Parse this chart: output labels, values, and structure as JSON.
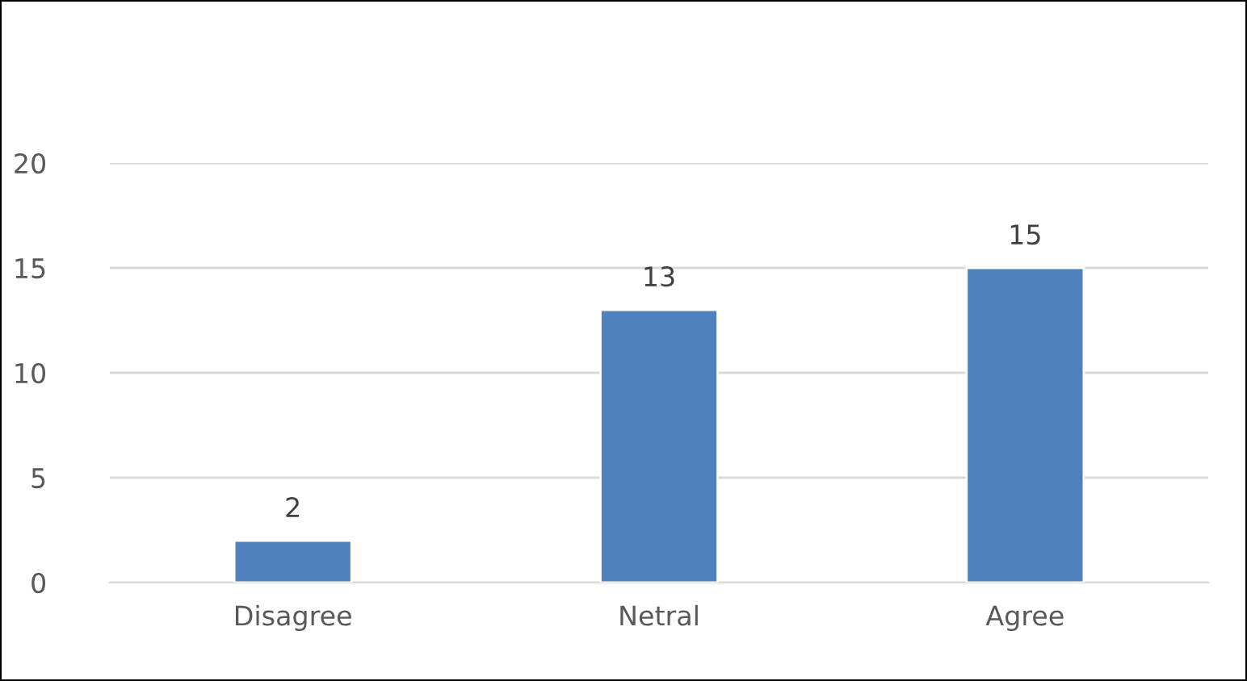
{
  "chart_data": {
    "type": "bar",
    "categories": [
      "Disagree",
      "Netral",
      "Agree"
    ],
    "values": [
      2,
      13,
      15
    ],
    "color": "#4f81bd",
    "ylim": [
      0,
      20
    ],
    "yticks": [
      0,
      5,
      10,
      15,
      20
    ],
    "grid": "y",
    "data_labels": true
  }
}
